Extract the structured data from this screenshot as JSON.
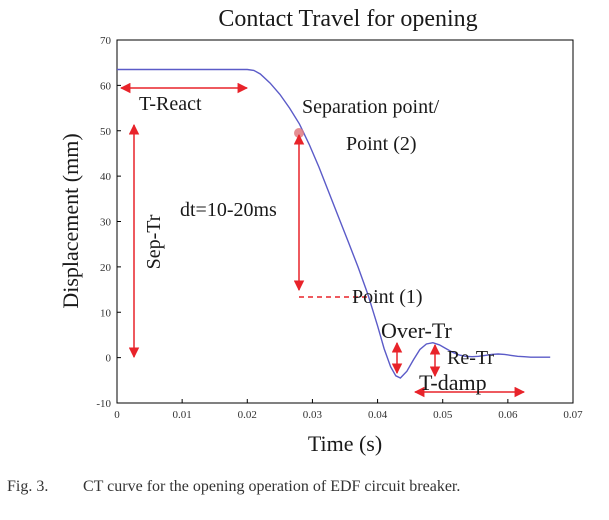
{
  "chart_data": {
    "type": "line",
    "title": "Contact Travel for opening",
    "xlabel": "Time (s)",
    "ylabel": "Displacement (mm)",
    "xlim": [
      0,
      0.07
    ],
    "ylim": [
      -10,
      70
    ],
    "x_ticks": [
      "0",
      "0.01",
      "0.02",
      "0.03",
      "0.04",
      "0.05",
      "0.06",
      "0.07"
    ],
    "y_ticks": [
      "-10",
      "0",
      "10",
      "20",
      "30",
      "40",
      "50",
      "60",
      "70"
    ],
    "grid": false,
    "series": [
      {
        "color": "#5b5bc8",
        "x": [
          0,
          0.005,
          0.01,
          0.015,
          0.02,
          0.021,
          0.022,
          0.0235,
          0.025,
          0.0265,
          0.028,
          0.0295,
          0.031,
          0.0325,
          0.034,
          0.0355,
          0.037,
          0.0385,
          0.04,
          0.041,
          0.042,
          0.0428,
          0.0435,
          0.0445,
          0.0455,
          0.0465,
          0.0475,
          0.0485,
          0.0495,
          0.0505,
          0.0515,
          0.0525,
          0.0535,
          0.0545,
          0.0555,
          0.0565,
          0.0575,
          0.0585,
          0.0595,
          0.0605,
          0.0615,
          0.0625,
          0.0635,
          0.0645,
          0.0655,
          0.0665
        ],
        "y": [
          63.5,
          63.5,
          63.5,
          63.5,
          63.5,
          63.3,
          62.5,
          60.5,
          58,
          55,
          51.5,
          47,
          42,
          36.5,
          31,
          25.5,
          20,
          14,
          7,
          2,
          -2,
          -4,
          -4.5,
          -3,
          -0.5,
          1.8,
          3,
          3.3,
          2.8,
          2,
          1.2,
          0.6,
          0.3,
          0.2,
          0.3,
          0.5,
          0.7,
          0.8,
          0.7,
          0.5,
          0.3,
          0.2,
          0.1,
          0.1,
          0.1,
          0.1
        ]
      }
    ],
    "annotations": {
      "t_react": "T-React",
      "separation_line1": "Separation point/",
      "separation_line2": "Point (2)",
      "dt": "dt=10-20ms",
      "sep_tr": "Sep-Tr",
      "point1": "Point (1)",
      "over_tr": "Over-Tr",
      "re_tr": "Re-Tr",
      "t_damp": "T-damp"
    }
  },
  "caption": {
    "label": "Fig. 3.",
    "text": "CT curve for the opening operation of EDF circuit breaker."
  }
}
